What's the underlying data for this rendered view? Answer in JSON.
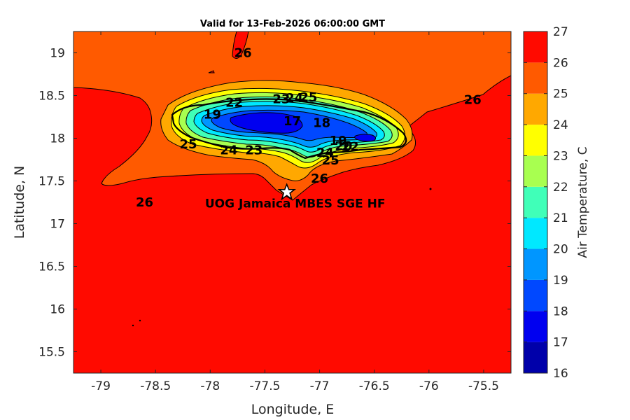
{
  "title": "Valid for 13-Feb-2026 06:00:00 GMT",
  "axes": {
    "xlabel": "Longitude, E",
    "ylabel": "Latitude, N",
    "xlim": [
      -79.25,
      -75.25
    ],
    "ylim": [
      15.25,
      19.25
    ],
    "xticks": [
      -79,
      -78.5,
      -78,
      -77.5,
      -77,
      -76.5,
      -76,
      -75.5
    ],
    "xtick_labels": [
      "-79",
      "-78.5",
      "-78",
      "-77.5",
      "-77",
      "-76.5",
      "-76",
      "-75.5"
    ],
    "yticks": [
      19,
      18.5,
      18,
      17.5,
      17,
      16.5,
      16,
      15.5
    ],
    "ytick_labels": [
      "19",
      "18.5",
      "18",
      "17.5",
      "17",
      "16.5",
      "16",
      "15.5"
    ]
  },
  "colorbar": {
    "label": "Air Temperature, C",
    "min": 16,
    "max": 27,
    "ticks": [
      16,
      17,
      18,
      19,
      20,
      21,
      22,
      23,
      24,
      25,
      26,
      27
    ],
    "tick_labels": [
      "16",
      "17",
      "18",
      "19",
      "20",
      "21",
      "22",
      "23",
      "24",
      "25",
      "26",
      "27"
    ],
    "colors": [
      "#0000aa",
      "#0000f0",
      "#0048ff",
      "#0096ff",
      "#00e8ff",
      "#40ffb8",
      "#a8ff50",
      "#ffff00",
      "#ffa800",
      "#ff5a00",
      "#ff0a00"
    ]
  },
  "contour_labels": [
    {
      "text": "26",
      "lon": -77.7,
      "lat": 19.0
    },
    {
      "text": "26",
      "lon": -75.6,
      "lat": 18.45
    },
    {
      "text": "25",
      "lon": -77.1,
      "lat": 18.48
    },
    {
      "text": "23",
      "lon": -77.35,
      "lat": 18.46
    },
    {
      "text": "24",
      "lon": -77.23,
      "lat": 18.47
    },
    {
      "text": "22",
      "lon": -77.78,
      "lat": 18.42
    },
    {
      "text": "19",
      "lon": -77.98,
      "lat": 18.28
    },
    {
      "text": "17",
      "lon": -77.25,
      "lat": 18.2
    },
    {
      "text": "18",
      "lon": -76.98,
      "lat": 18.18
    },
    {
      "text": "19",
      "lon": -76.83,
      "lat": 17.97
    },
    {
      "text": "22",
      "lon": -76.72,
      "lat": 17.9
    },
    {
      "text": "20",
      "lon": -76.78,
      "lat": 17.91
    },
    {
      "text": "25",
      "lon": -78.2,
      "lat": 17.93
    },
    {
      "text": "24",
      "lon": -77.83,
      "lat": 17.86
    },
    {
      "text": "23",
      "lon": -77.6,
      "lat": 17.86
    },
    {
      "text": "24",
      "lon": -76.95,
      "lat": 17.83
    },
    {
      "text": "25",
      "lon": -76.9,
      "lat": 17.74
    },
    {
      "text": "26",
      "lon": -77.0,
      "lat": 17.53
    },
    {
      "text": "26",
      "lon": -78.6,
      "lat": 17.25
    }
  ],
  "station": {
    "name": "UOG Jamaica MBES SGE HF",
    "lon": -77.3,
    "lat": 17.37,
    "icon": "star-icon"
  },
  "map_layers": {
    "island": "Jamaica",
    "contour_levels": [
      16,
      17,
      18,
      19,
      20,
      21,
      22,
      23,
      24,
      25,
      26,
      27
    ]
  }
}
